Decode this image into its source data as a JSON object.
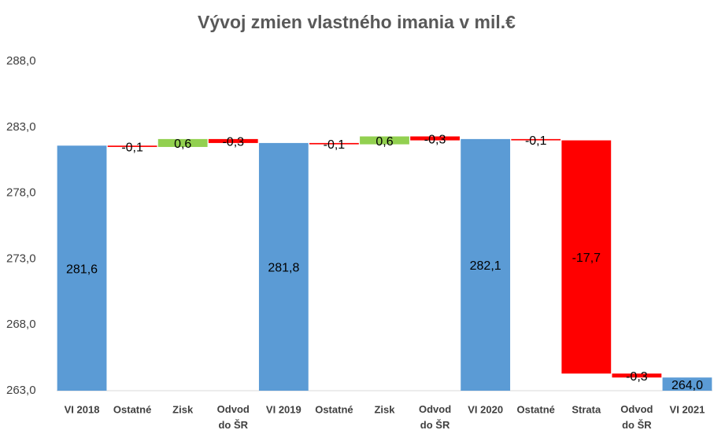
{
  "chart_data": {
    "type": "waterfall",
    "title": "Vývoj zmien vlastného imania v mil.€",
    "categories": [
      "VI 2018",
      "Ostatné",
      "Zisk",
      "Odvod\ndo ŠR",
      "VI 2019",
      "Ostatné",
      "Zisk",
      "Odvod\ndo ŠR",
      "VI 2020",
      "Ostatné",
      "Strata",
      "Odvod\ndo ŠR",
      "VI 2021"
    ],
    "values": [
      281.6,
      -0.1,
      0.6,
      -0.3,
      281.8,
      -0.1,
      0.6,
      -0.3,
      282.1,
      -0.1,
      -17.7,
      -0.3,
      264.0
    ],
    "value_labels": [
      "281,6",
      "-0,1",
      "0,6",
      "-0,3",
      "281,8",
      "-0,1",
      "0,6",
      "-0,3",
      "282,1",
      "-0,1",
      "-17,7",
      "-0,3",
      "264,0"
    ],
    "is_total": [
      true,
      false,
      false,
      false,
      true,
      false,
      false,
      false,
      true,
      false,
      false,
      false,
      true
    ],
    "colors": {
      "total": "#5b9bd5",
      "increase": "#92d050",
      "decrease": "#ff0000"
    },
    "ylim": [
      263,
      288
    ],
    "yticks": [
      {
        "value": 263,
        "label": "263,0"
      },
      {
        "value": 268,
        "label": "268,0"
      },
      {
        "value": 273,
        "label": "273,0"
      },
      {
        "value": 278,
        "label": "278,0"
      },
      {
        "value": 283,
        "label": "283,0"
      },
      {
        "value": 288,
        "label": "288,0"
      }
    ],
    "grid": false
  }
}
